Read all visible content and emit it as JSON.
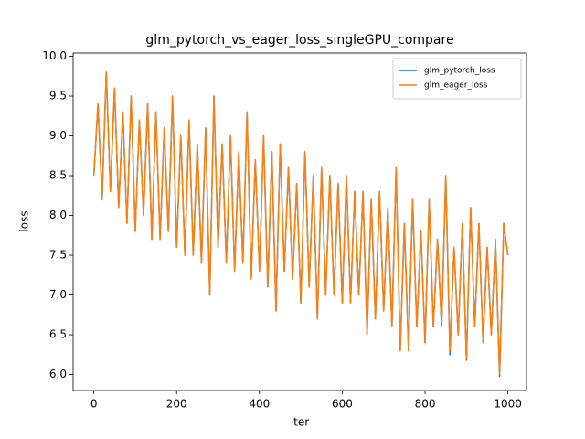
{
  "chart_data": {
    "type": "line",
    "title": "glm_pytorch_vs_eager_loss_singleGPU_compare",
    "x_label": "iter",
    "y_label": "loss",
    "legend": "upper right",
    "grid": false,
    "xlim": [
      -50,
      1045
    ],
    "ylim": [
      5.8,
      10.04
    ],
    "xticks": [
      0,
      200,
      400,
      600,
      800,
      1000
    ],
    "yticks": [
      {
        "value": 6,
        "label": "6.0"
      },
      {
        "value": 6.5,
        "label": "6.5"
      },
      {
        "value": 7,
        "label": "7.0"
      },
      {
        "value": 7.5,
        "label": "7.5"
      },
      {
        "value": 8,
        "label": "8.0"
      },
      {
        "value": 8.5,
        "label": "8.5"
      },
      {
        "value": 9,
        "label": "9.0"
      },
      {
        "value": 9.5,
        "label": "9.5"
      },
      {
        "value": 10,
        "label": "10.0"
      }
    ],
    "x": [
      0,
      10,
      20,
      30,
      40,
      50,
      60,
      70,
      80,
      90,
      100,
      110,
      120,
      130,
      140,
      150,
      160,
      170,
      180,
      190,
      200,
      210,
      220,
      230,
      240,
      250,
      260,
      270,
      280,
      290,
      300,
      310,
      320,
      330,
      340,
      350,
      360,
      370,
      380,
      390,
      400,
      410,
      420,
      430,
      440,
      450,
      460,
      470,
      480,
      490,
      500,
      510,
      520,
      530,
      540,
      550,
      560,
      570,
      580,
      590,
      600,
      610,
      620,
      630,
      640,
      650,
      660,
      670,
      680,
      690,
      700,
      710,
      720,
      730,
      740,
      750,
      760,
      770,
      780,
      790,
      800,
      810,
      820,
      830,
      840,
      850,
      860,
      870,
      880,
      890,
      900,
      910,
      920,
      930,
      940,
      950,
      960,
      970,
      980,
      990,
      1000
    ],
    "series": [
      {
        "name": "glm_pytorch_loss",
        "color": "#1f77b4",
        "values": [
          8.5,
          9.4,
          8.2,
          9.8,
          8.3,
          9.6,
          8.1,
          9.3,
          7.9,
          9.5,
          7.8,
          9.2,
          8.0,
          9.4,
          7.7,
          9.3,
          7.7,
          9.1,
          7.8,
          9.5,
          7.6,
          9.0,
          7.5,
          9.2,
          7.5,
          8.9,
          7.4,
          9.1,
          7.0,
          9.5,
          7.6,
          8.9,
          7.4,
          9.0,
          7.3,
          8.8,
          7.4,
          9.3,
          7.2,
          8.7,
          7.3,
          9.0,
          7.1,
          8.8,
          6.8,
          8.9,
          7.3,
          8.6,
          7.2,
          8.4,
          6.9,
          8.8,
          7.1,
          8.5,
          6.7,
          8.6,
          7.0,
          8.5,
          7.0,
          8.4,
          6.9,
          8.5,
          6.9,
          8.3,
          7.0,
          8.3,
          6.5,
          8.2,
          6.7,
          8.3,
          6.8,
          8.1,
          6.6,
          8.6,
          6.3,
          7.9,
          6.3,
          8.2,
          6.6,
          7.8,
          6.4,
          8.2,
          6.6,
          7.7,
          6.6,
          8.5,
          6.25,
          7.6,
          6.5,
          7.9,
          6.18,
          8.1,
          6.6,
          7.9,
          6.4,
          7.6,
          6.5,
          7.7,
          5.98,
          7.9,
          7.5
        ]
      },
      {
        "name": "glm_eager_loss",
        "color": "#ff7f0e",
        "values": [
          8.5,
          9.4,
          8.2,
          9.8,
          8.3,
          9.6,
          8.1,
          9.3,
          7.9,
          9.5,
          7.8,
          9.2,
          8.0,
          9.4,
          7.7,
          9.3,
          7.7,
          9.1,
          7.8,
          9.5,
          7.6,
          9.0,
          7.5,
          9.2,
          7.5,
          8.9,
          7.4,
          9.1,
          7.0,
          9.5,
          7.6,
          8.9,
          7.4,
          9.0,
          7.3,
          8.8,
          7.4,
          9.3,
          7.2,
          8.7,
          7.3,
          9.0,
          7.1,
          8.8,
          6.8,
          8.9,
          7.3,
          8.6,
          7.2,
          8.4,
          6.9,
          8.8,
          7.1,
          8.5,
          6.7,
          8.6,
          7.0,
          8.5,
          7.0,
          8.4,
          6.9,
          8.5,
          6.9,
          8.3,
          7.0,
          8.3,
          6.5,
          8.2,
          6.7,
          8.3,
          6.8,
          8.1,
          6.6,
          8.6,
          6.3,
          7.9,
          6.3,
          8.2,
          6.6,
          7.8,
          6.4,
          8.2,
          6.6,
          7.7,
          6.6,
          8.5,
          6.3,
          7.6,
          6.5,
          7.9,
          6.2,
          8.1,
          6.6,
          7.9,
          6.4,
          7.6,
          6.5,
          7.7,
          6.0,
          7.9,
          7.5
        ]
      }
    ]
  }
}
